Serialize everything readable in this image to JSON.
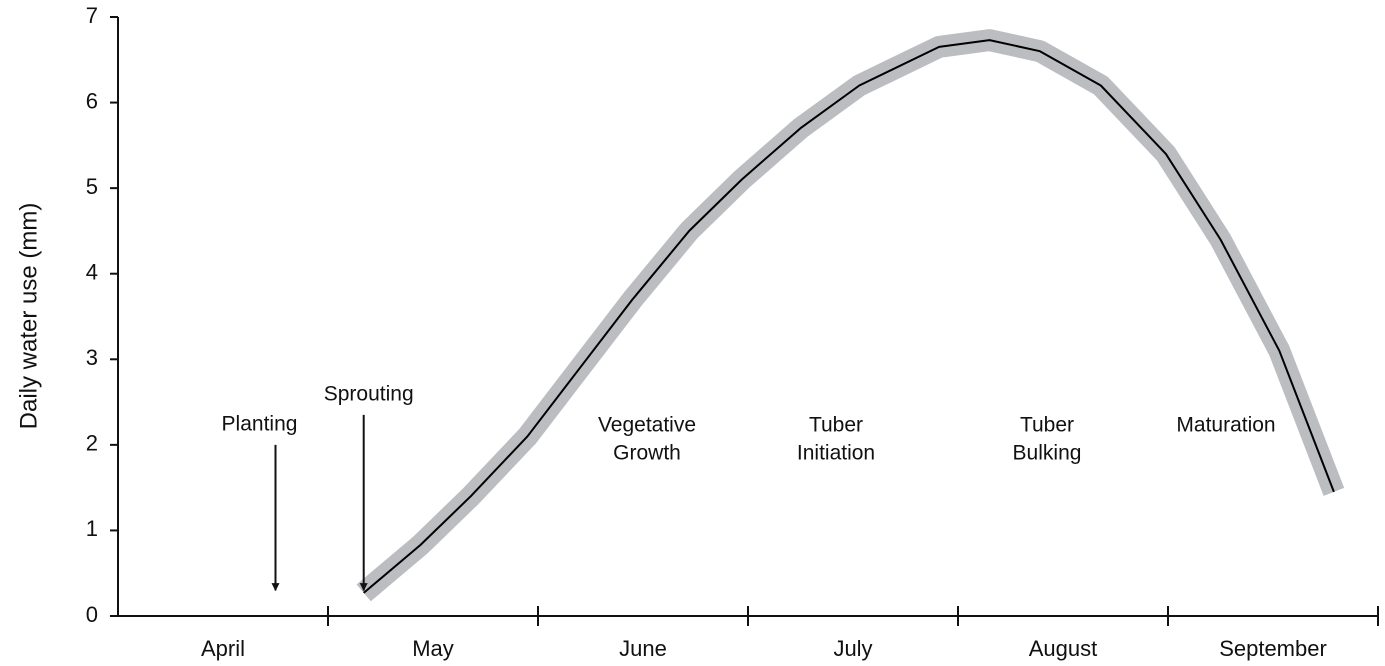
{
  "chart_data": {
    "type": "line",
    "y_label": "Daily water use  (mm)",
    "categories": [
      "April",
      "May",
      "June",
      "July",
      "August",
      "September"
    ],
    "x": [
      1.17,
      1.44,
      1.68,
      1.95,
      2.2,
      2.45,
      2.72,
      2.97,
      3.25,
      3.53,
      3.91,
      4.15,
      4.39,
      4.68,
      4.99,
      5.25,
      5.53,
      5.79
    ],
    "series": [
      {
        "color": "#000000",
        "band_color": "#bcbdc0",
        "values": [
          0.27,
          0.83,
          1.4,
          2.1,
          2.9,
          3.7,
          4.5,
          5.1,
          5.7,
          6.2,
          6.65,
          6.73,
          6.6,
          6.2,
          5.4,
          4.4,
          3.1,
          1.45
        ]
      }
    ],
    "xlim": [
      0,
      6
    ],
    "xticks": [
      1,
      2,
      3,
      4,
      5
    ],
    "ylim": [
      0,
      7
    ],
    "yticks": [
      0,
      1,
      2,
      3,
      4,
      5,
      6,
      7
    ],
    "arrows": [
      {
        "label": "Planting",
        "x": 0.75,
        "from": 2.0,
        "to": 0.3
      },
      {
        "label": "Sprouting",
        "x": 1.17,
        "from": 2.35,
        "to": 0.3
      }
    ],
    "stages": [
      {
        "lines": [
          "Vegetative",
          "Growth"
        ]
      },
      {
        "lines": [
          "Tuber",
          "Initiation"
        ]
      },
      {
        "lines": [
          "Tuber",
          "Bulking"
        ]
      },
      {
        "lines": [
          "Maturation"
        ]
      }
    ]
  }
}
